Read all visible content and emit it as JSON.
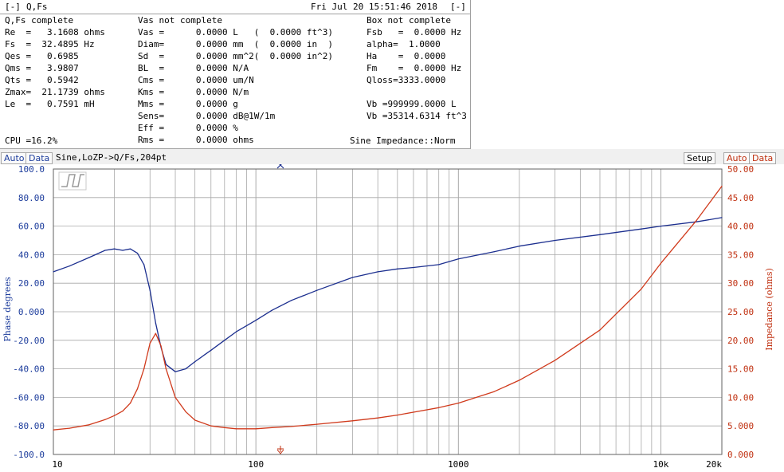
{
  "window": {
    "menu_label": "[-]",
    "title": "Q,Fs",
    "timestamp": "Fri Jul 20 15:51:46 2018",
    "close_label": "[-]"
  },
  "params": {
    "section_qfs": "Q,Fs complete",
    "section_vas": "Vas not complete",
    "section_box": "Box not complete",
    "col1": [
      "Re  =   3.1608 ohms",
      "Fs  =  32.4895 Hz",
      "Qes =   0.6985",
      "Qms =   3.9807",
      "Qts =   0.5942",
      "Zmax=  21.1739 ohms",
      "Le  =   0.7591 mH"
    ],
    "col2": [
      "Vas =      0.0000 L   (  0.0000 ft^3)",
      "Diam=      0.0000 mm  (  0.0000 in  )",
      "Sd  =      0.0000 mm^2(  0.0000 in^2)",
      "BL  =      0.0000 N/A",
      "Cms =      0.0000 um/N",
      "Kms =      0.0000 N/m",
      "Mms =      0.0000 g",
      "Sens=      0.0000 dB@1W/1m",
      "Eff =      0.0000 %",
      "Rms =      0.0000 ohms"
    ],
    "col3": [
      "Fsb   =  0.0000 Hz",
      "alpha=  1.0000",
      "Ha    =  0.0000",
      "Fm    =  0.0000 Hz",
      "Qloss=3333.0000",
      "",
      "Vb =999999.0000 L",
      "Vb =35314.6314 ft^3"
    ],
    "cpu": "CPU =16.2%",
    "sine_mode": "Sine Impedance::Norm"
  },
  "toolbar": {
    "left_auto": "Auto",
    "left_data": "Data",
    "graph_title": "Sine,LoZP->Q/Fs,204pt",
    "setup": "Setup",
    "right_auto": "Auto",
    "right_data": "Data"
  },
  "colors": {
    "phase": "#1c2f8f",
    "impedance": "#d03a1c",
    "grid": "#a8a8a8",
    "left_axis_text": "#1c3c9c",
    "right_axis_text": "#c03010"
  },
  "chart_data": {
    "type": "line",
    "x_scale": "log",
    "xlim": [
      10,
      20000
    ],
    "x_tick_labels": [
      {
        "value": 10,
        "label": "10"
      },
      {
        "value": 100,
        "label": "100"
      },
      {
        "value": 1000,
        "label": "1000"
      },
      {
        "value": 10000,
        "label": "10k"
      },
      {
        "value": 20000,
        "label": "20k"
      }
    ],
    "left_axis": {
      "label": "Phase degrees",
      "ylim": [
        -100,
        100
      ],
      "ticks": [
        "100.0",
        "80.00",
        "60.00",
        "40.00",
        "20.00",
        "0.000",
        "-20.00",
        "-40.00",
        "-60.00",
        "-80.00",
        "-100.0"
      ]
    },
    "right_axis": {
      "label": "Impedance (ohms)",
      "ylim": [
        0,
        50
      ],
      "ticks": [
        "50.00",
        "45.00",
        "40.00",
        "35.00",
        "30.00",
        "25.00",
        "20.00",
        "15.00",
        "10.00",
        "5.000",
        "0.000"
      ]
    },
    "series": [
      {
        "name": "Phase degrees",
        "axis": "left",
        "color": "#1c2f8f",
        "x": [
          10,
          12,
          15,
          18,
          20,
          22,
          24,
          26,
          28,
          30,
          32,
          34,
          36,
          40,
          45,
          50,
          60,
          70,
          80,
          100,
          120,
          150,
          200,
          300,
          400,
          500,
          600,
          800,
          1000,
          1500,
          2000,
          3000,
          5000,
          8000,
          10000,
          15000,
          20000
        ],
        "y": [
          28,
          32,
          38,
          43,
          44,
          43,
          44,
          41,
          33,
          15,
          -8,
          -25,
          -37,
          -42,
          -40,
          -35,
          -27,
          -20,
          -14,
          -6,
          1,
          8,
          15,
          24,
          28,
          30,
          31,
          33,
          37,
          42,
          46,
          50,
          54,
          58,
          60,
          63,
          66
        ]
      },
      {
        "name": "Impedance (ohms)",
        "axis": "right",
        "color": "#d03a1c",
        "x": [
          10,
          12,
          15,
          18,
          20,
          22,
          24,
          26,
          28,
          30,
          32,
          34,
          36,
          40,
          45,
          50,
          60,
          70,
          80,
          100,
          120,
          150,
          200,
          300,
          400,
          500,
          600,
          800,
          1000,
          1500,
          2000,
          3000,
          5000,
          8000,
          10000,
          15000,
          20000
        ],
        "y": [
          4.3,
          4.6,
          5.2,
          6.1,
          6.8,
          7.6,
          9.0,
          11.5,
          15.0,
          19.5,
          21.2,
          19.0,
          15.0,
          10.0,
          7.5,
          6.0,
          5.0,
          4.7,
          4.5,
          4.5,
          4.7,
          4.9,
          5.3,
          5.9,
          6.4,
          6.9,
          7.4,
          8.2,
          9.0,
          11.0,
          13.0,
          16.5,
          21.8,
          29.0,
          33.5,
          41.0,
          47.0
        ]
      }
    ]
  }
}
